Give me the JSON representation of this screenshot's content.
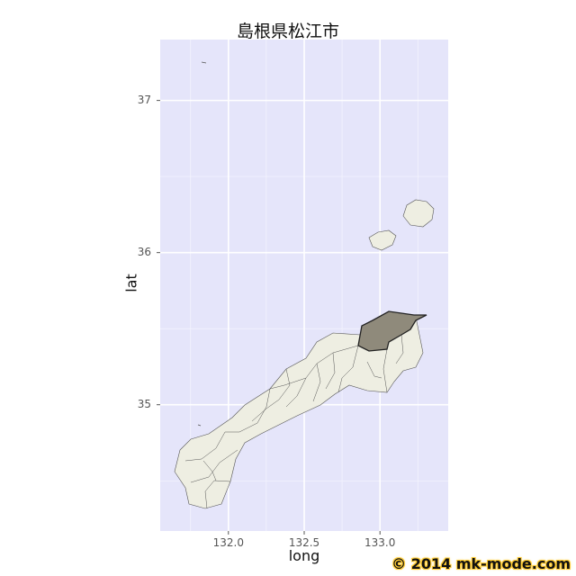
{
  "chart_data": {
    "type": "map",
    "title": "島根県松江市",
    "xlabel": "long",
    "ylabel": "lat",
    "xlim": [
      131.55,
      133.45
    ],
    "ylim": [
      34.17,
      37.4
    ],
    "x_ticks": [
      {
        "value": 132.0,
        "label": "132.0"
      },
      {
        "value": 132.5,
        "label": "132.5"
      },
      {
        "value": 133.0,
        "label": "133.0"
      }
    ],
    "y_ticks": [
      {
        "value": 35,
        "label": "35"
      },
      {
        "value": 36,
        "label": "36"
      },
      {
        "value": 37,
        "label": "37"
      }
    ],
    "grid": true,
    "highlighted_region": "松江市",
    "colors": {
      "panel_background": "#e5e5fa",
      "grid_line": "#ffffff",
      "region_fill": "#eeeee2",
      "region_border": "#555555",
      "highlight_fill": "#8f8a7b",
      "highlight_border": "#222222"
    }
  },
  "credit": "© 2014 mk-mode.com"
}
